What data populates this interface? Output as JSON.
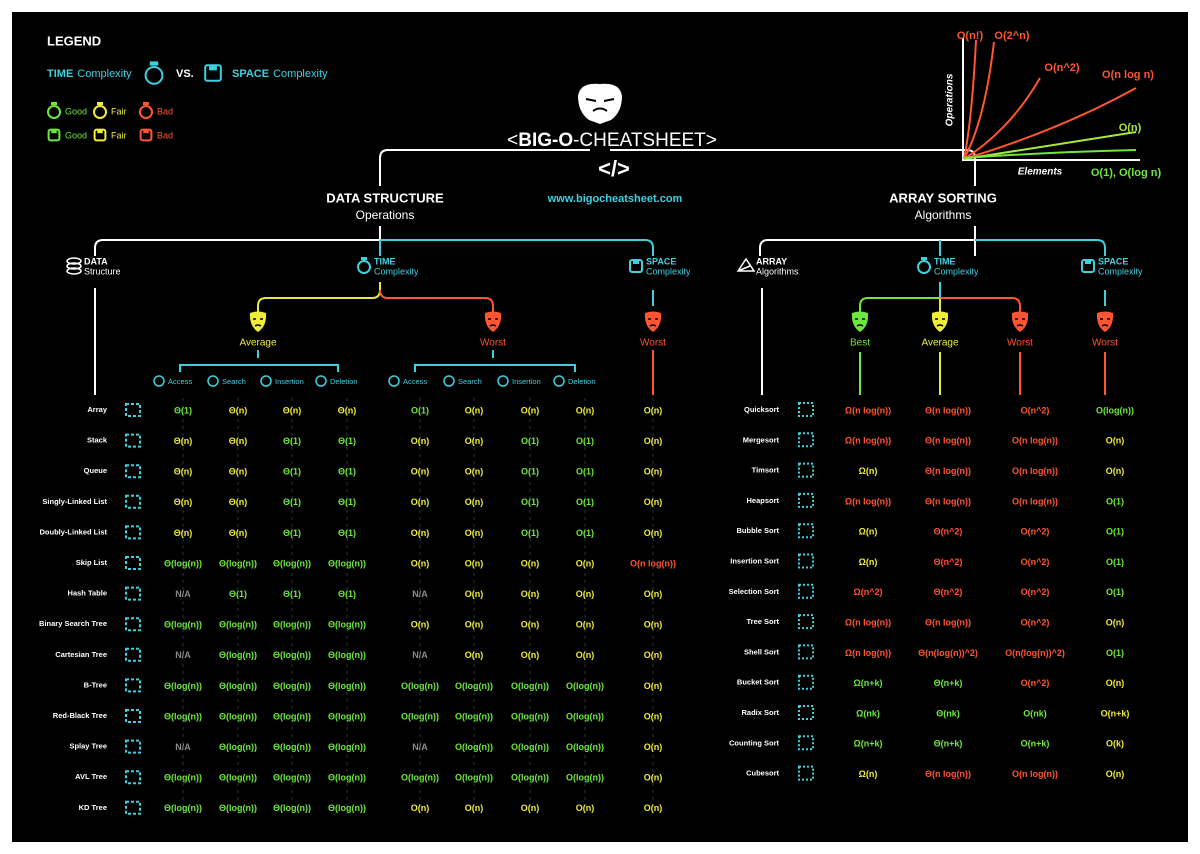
{
  "legend": {
    "title": "LEGEND",
    "time": "TIME",
    "time_label": "Complexity",
    "vs": "VS.",
    "space": "SPACE",
    "space_label": "Complexity",
    "time_ratings": [
      "Good",
      "Fair",
      "Bad"
    ],
    "space_ratings": [
      "Good",
      "Fair",
      "Bad"
    ]
  },
  "colors": {
    "good": "#6ee83c",
    "fair": "#f0ec3a",
    "bad": "#ff5530",
    "na": "#8a8a8a"
  },
  "header": {
    "title_open": "<",
    "title_bold": "BIG-O",
    "title_rest": "-CHEATSHEET>",
    "code": "</>",
    "url": "www.bigocheatsheet.com"
  },
  "growth_chart": {
    "y_label": "Operations",
    "x_label": "Elements",
    "curves": [
      {
        "label": "O(n!)",
        "color": "#ff5530"
      },
      {
        "label": "O(2^n)",
        "color": "#ff5530"
      },
      {
        "label": "O(n^2)",
        "color": "#ff5530"
      },
      {
        "label": "O(n log n)",
        "color": "#ff5530"
      },
      {
        "label": "O(n)",
        "color": "#a6e83c"
      },
      {
        "label": "O(1), O(log n)",
        "color": "#6ee83c"
      }
    ]
  },
  "data_structures": {
    "title": "DATA STRUCTURE",
    "subtitle": "Operations",
    "columns": [
      {
        "bold": "DATA",
        "text": "Structure"
      },
      {
        "bold": "TIME",
        "text": "Complexity"
      },
      {
        "bold": "SPACE",
        "text": "Complexity"
      }
    ],
    "cases": [
      "Average",
      "Worst",
      "Worst"
    ],
    "operations": [
      "Access",
      "Search",
      "Insertion",
      "Deletion"
    ],
    "rows": [
      {
        "name": "Array",
        "values": [
          "Θ(1)",
          "Θ(n)",
          "Θ(n)",
          "Θ(n)",
          "O(1)",
          "O(n)",
          "O(n)",
          "O(n)",
          "O(n)"
        ],
        "ratings": [
          "good",
          "fair",
          "fair",
          "fair",
          "good",
          "fair",
          "fair",
          "fair",
          "fair"
        ]
      },
      {
        "name": "Stack",
        "values": [
          "Θ(n)",
          "Θ(n)",
          "Θ(1)",
          "Θ(1)",
          "O(n)",
          "O(n)",
          "O(1)",
          "O(1)",
          "O(n)"
        ],
        "ratings": [
          "fair",
          "fair",
          "good",
          "good",
          "fair",
          "fair",
          "good",
          "good",
          "fair"
        ]
      },
      {
        "name": "Queue",
        "values": [
          "Θ(n)",
          "Θ(n)",
          "Θ(1)",
          "Θ(1)",
          "O(n)",
          "O(n)",
          "O(1)",
          "O(1)",
          "O(n)"
        ],
        "ratings": [
          "fair",
          "fair",
          "good",
          "good",
          "fair",
          "fair",
          "good",
          "good",
          "fair"
        ]
      },
      {
        "name": "Singly-Linked List",
        "values": [
          "Θ(n)",
          "Θ(n)",
          "Θ(1)",
          "Θ(1)",
          "O(n)",
          "O(n)",
          "O(1)",
          "O(1)",
          "O(n)"
        ],
        "ratings": [
          "fair",
          "fair",
          "good",
          "good",
          "fair",
          "fair",
          "good",
          "good",
          "fair"
        ]
      },
      {
        "name": "Doubly-Linked List",
        "values": [
          "Θ(n)",
          "Θ(n)",
          "Θ(1)",
          "Θ(1)",
          "O(n)",
          "O(n)",
          "O(1)",
          "O(1)",
          "O(n)"
        ],
        "ratings": [
          "fair",
          "fair",
          "good",
          "good",
          "fair",
          "fair",
          "good",
          "good",
          "fair"
        ]
      },
      {
        "name": "Skip List",
        "values": [
          "Θ(log(n))",
          "Θ(log(n))",
          "Θ(log(n))",
          "Θ(log(n))",
          "O(n)",
          "O(n)",
          "O(n)",
          "O(n)",
          "O(n log(n))"
        ],
        "ratings": [
          "good",
          "good",
          "good",
          "good",
          "fair",
          "fair",
          "fair",
          "fair",
          "bad"
        ]
      },
      {
        "name": "Hash Table",
        "values": [
          "N/A",
          "Θ(1)",
          "Θ(1)",
          "Θ(1)",
          "N/A",
          "O(n)",
          "O(n)",
          "O(n)",
          "O(n)"
        ],
        "ratings": [
          "na",
          "good",
          "good",
          "good",
          "na",
          "fair",
          "fair",
          "fair",
          "fair"
        ]
      },
      {
        "name": "Binary Search Tree",
        "values": [
          "Θ(log(n))",
          "Θ(log(n))",
          "Θ(log(n))",
          "Θ(log(n))",
          "O(n)",
          "O(n)",
          "O(n)",
          "O(n)",
          "O(n)"
        ],
        "ratings": [
          "good",
          "good",
          "good",
          "good",
          "fair",
          "fair",
          "fair",
          "fair",
          "fair"
        ]
      },
      {
        "name": "Cartesian Tree",
        "values": [
          "N/A",
          "Θ(log(n))",
          "Θ(log(n))",
          "Θ(log(n))",
          "N/A",
          "O(n)",
          "O(n)",
          "O(n)",
          "O(n)"
        ],
        "ratings": [
          "na",
          "good",
          "good",
          "good",
          "na",
          "fair",
          "fair",
          "fair",
          "fair"
        ]
      },
      {
        "name": "B-Tree",
        "values": [
          "Θ(log(n))",
          "Θ(log(n))",
          "Θ(log(n))",
          "Θ(log(n))",
          "O(log(n))",
          "O(log(n))",
          "O(log(n))",
          "O(log(n))",
          "O(n)"
        ],
        "ratings": [
          "good",
          "good",
          "good",
          "good",
          "good",
          "good",
          "good",
          "good",
          "fair"
        ]
      },
      {
        "name": "Red-Black Tree",
        "values": [
          "Θ(log(n))",
          "Θ(log(n))",
          "Θ(log(n))",
          "Θ(log(n))",
          "O(log(n))",
          "O(log(n))",
          "O(log(n))",
          "O(log(n))",
          "O(n)"
        ],
        "ratings": [
          "good",
          "good",
          "good",
          "good",
          "good",
          "good",
          "good",
          "good",
          "fair"
        ]
      },
      {
        "name": "Splay Tree",
        "values": [
          "N/A",
          "Θ(log(n))",
          "Θ(log(n))",
          "Θ(log(n))",
          "N/A",
          "O(log(n))",
          "O(log(n))",
          "O(log(n))",
          "O(n)"
        ],
        "ratings": [
          "na",
          "good",
          "good",
          "good",
          "na",
          "good",
          "good",
          "good",
          "fair"
        ]
      },
      {
        "name": "AVL Tree",
        "values": [
          "Θ(log(n))",
          "Θ(log(n))",
          "Θ(log(n))",
          "Θ(log(n))",
          "O(log(n))",
          "O(log(n))",
          "O(log(n))",
          "O(log(n))",
          "O(n)"
        ],
        "ratings": [
          "good",
          "good",
          "good",
          "good",
          "good",
          "good",
          "good",
          "good",
          "fair"
        ]
      },
      {
        "name": "KD Tree",
        "values": [
          "Θ(log(n))",
          "Θ(log(n))",
          "Θ(log(n))",
          "Θ(log(n))",
          "O(n)",
          "O(n)",
          "O(n)",
          "O(n)",
          "O(n)"
        ],
        "ratings": [
          "good",
          "good",
          "good",
          "good",
          "fair",
          "fair",
          "fair",
          "fair",
          "fair"
        ]
      }
    ]
  },
  "array_sorting": {
    "title": "ARRAY SORTING",
    "subtitle": "Algorithms",
    "columns": [
      {
        "bold": "ARRAY",
        "text": "Algorithms"
      },
      {
        "bold": "TIME",
        "text": "Complexity"
      },
      {
        "bold": "SPACE",
        "text": "Complexity"
      }
    ],
    "cases": [
      "Best",
      "Average",
      "Worst",
      "Worst"
    ],
    "rows": [
      {
        "name": "Quicksort",
        "values": [
          "Ω(n log(n))",
          "Θ(n log(n))",
          "O(n^2)",
          "O(log(n))"
        ],
        "ratings": [
          "bad",
          "bad",
          "bad",
          "good"
        ]
      },
      {
        "name": "Mergesort",
        "values": [
          "Ω(n log(n))",
          "Θ(n log(n))",
          "O(n log(n))",
          "O(n)"
        ],
        "ratings": [
          "bad",
          "bad",
          "bad",
          "fair"
        ]
      },
      {
        "name": "Timsort",
        "values": [
          "Ω(n)",
          "Θ(n log(n))",
          "O(n log(n))",
          "O(n)"
        ],
        "ratings": [
          "fair",
          "bad",
          "bad",
          "fair"
        ]
      },
      {
        "name": "Heapsort",
        "values": [
          "Ω(n log(n))",
          "Θ(n log(n))",
          "O(n log(n))",
          "O(1)"
        ],
        "ratings": [
          "bad",
          "bad",
          "bad",
          "good"
        ]
      },
      {
        "name": "Bubble Sort",
        "values": [
          "Ω(n)",
          "Θ(n^2)",
          "O(n^2)",
          "O(1)"
        ],
        "ratings": [
          "fair",
          "bad",
          "bad",
          "good"
        ]
      },
      {
        "name": "Insertion Sort",
        "values": [
          "Ω(n)",
          "Θ(n^2)",
          "O(n^2)",
          "O(1)"
        ],
        "ratings": [
          "fair",
          "bad",
          "bad",
          "good"
        ]
      },
      {
        "name": "Selection Sort",
        "values": [
          "Ω(n^2)",
          "Θ(n^2)",
          "O(n^2)",
          "O(1)"
        ],
        "ratings": [
          "bad",
          "bad",
          "bad",
          "good"
        ]
      },
      {
        "name": "Tree Sort",
        "values": [
          "Ω(n log(n))",
          "Θ(n log(n))",
          "O(n^2)",
          "O(n)"
        ],
        "ratings": [
          "bad",
          "bad",
          "bad",
          "fair"
        ]
      },
      {
        "name": "Shell Sort",
        "values": [
          "Ω(n log(n))",
          "Θ(n(log(n))^2)",
          "O(n(log(n))^2)",
          "O(1)"
        ],
        "ratings": [
          "bad",
          "bad",
          "bad",
          "good"
        ]
      },
      {
        "name": "Bucket Sort",
        "values": [
          "Ω(n+k)",
          "Θ(n+k)",
          "O(n^2)",
          "O(n)"
        ],
        "ratings": [
          "good",
          "good",
          "bad",
          "fair"
        ]
      },
      {
        "name": "Radix Sort",
        "values": [
          "Ω(nk)",
          "Θ(nk)",
          "O(nk)",
          "O(n+k)"
        ],
        "ratings": [
          "good",
          "good",
          "good",
          "fair"
        ]
      },
      {
        "name": "Counting Sort",
        "values": [
          "Ω(n+k)",
          "Θ(n+k)",
          "O(n+k)",
          "O(k)"
        ],
        "ratings": [
          "good",
          "good",
          "good",
          "fair"
        ]
      },
      {
        "name": "Cubesort",
        "values": [
          "Ω(n)",
          "Θ(n log(n))",
          "O(n log(n))",
          "O(n)"
        ],
        "ratings": [
          "fair",
          "bad",
          "bad",
          "fair"
        ]
      }
    ]
  }
}
